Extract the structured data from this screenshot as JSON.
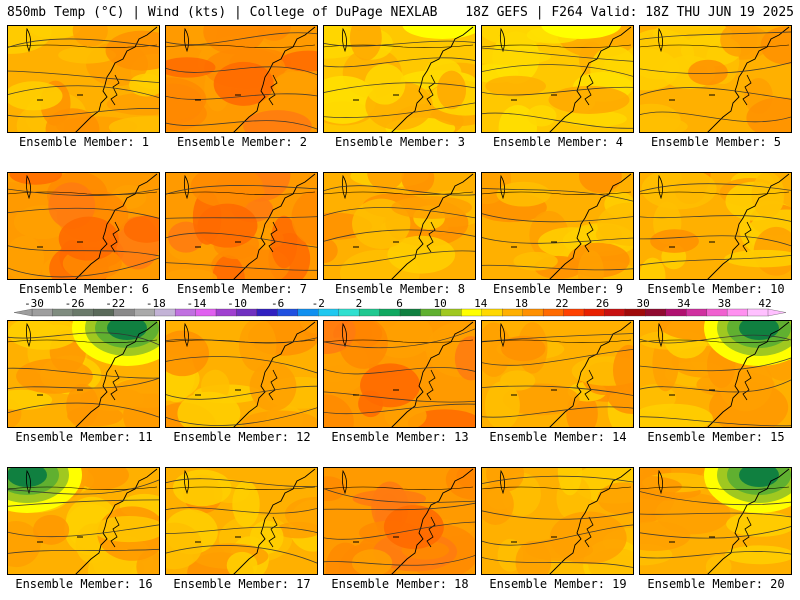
{
  "header": {
    "left": "850mb Temp (°C) | Wind (kts) | College of DuPage NEXLAB",
    "right": "18Z GEFS | F264 Valid: 18Z THU JUN 19 2025"
  },
  "colorbar": {
    "tick_labels": [
      "-30",
      "-26",
      "-22",
      "-18",
      "-14",
      "-10",
      "-6",
      "-2",
      "2",
      "6",
      "10",
      "14",
      "18",
      "22",
      "26",
      "30",
      "34",
      "38",
      "42"
    ],
    "tick_values": [
      -30,
      -26,
      -22,
      -18,
      -14,
      -10,
      -6,
      -2,
      2,
      6,
      10,
      14,
      18,
      22,
      26,
      30,
      34,
      38,
      42
    ],
    "colors": [
      "#9e9e9e",
      "#7f8c7f",
      "#6a7a6a",
      "#5a6a5a",
      "#8a8a8a",
      "#aaaaaa",
      "#c3b3d6",
      "#c070e0",
      "#e060f0",
      "#a040d0",
      "#7030c0",
      "#3020c0",
      "#2050e0",
      "#1090f0",
      "#20c8f0",
      "#30e0d0",
      "#20c890",
      "#10a860",
      "#108040",
      "#60b030",
      "#a0c820",
      "#ffff00",
      "#ffd800",
      "#ffb000",
      "#ff9000",
      "#ff6a00",
      "#ff4000",
      "#e82000",
      "#c81010",
      "#a00a0a",
      "#900a30",
      "#b01070",
      "#d030a0",
      "#f060d0",
      "#ff90f0",
      "#ffc0ff"
    ]
  },
  "members": [
    {
      "label": "Ensemble Member: 1",
      "palette": "warm"
    },
    {
      "label": "Ensemble Member: 2",
      "palette": "hot"
    },
    {
      "label": "Ensemble Member: 3",
      "palette": "mild"
    },
    {
      "label": "Ensemble Member: 4",
      "palette": "mild"
    },
    {
      "label": "Ensemble Member: 5",
      "palette": "warm"
    },
    {
      "label": "Ensemble Member: 6",
      "palette": "hot"
    },
    {
      "label": "Ensemble Member: 7",
      "palette": "hot"
    },
    {
      "label": "Ensemble Member: 8",
      "palette": "warm"
    },
    {
      "label": "Ensemble Member: 9",
      "palette": "warm"
    },
    {
      "label": "Ensemble Member: 10",
      "palette": "warm"
    },
    {
      "label": "Ensemble Member: 11",
      "palette": "coolne"
    },
    {
      "label": "Ensemble Member: 12",
      "palette": "warm"
    },
    {
      "label": "Ensemble Member: 13",
      "palette": "hot"
    },
    {
      "label": "Ensemble Member: 14",
      "palette": "warm"
    },
    {
      "label": "Ensemble Member: 15",
      "palette": "coolne"
    },
    {
      "label": "Ensemble Member: 16",
      "palette": "coolnw"
    },
    {
      "label": "Ensemble Member: 17",
      "palette": "warm"
    },
    {
      "label": "Ensemble Member: 18",
      "palette": "hot"
    },
    {
      "label": "Ensemble Member: 19",
      "palette": "warm"
    },
    {
      "label": "Ensemble Member: 20",
      "palette": "coolne"
    }
  ]
}
